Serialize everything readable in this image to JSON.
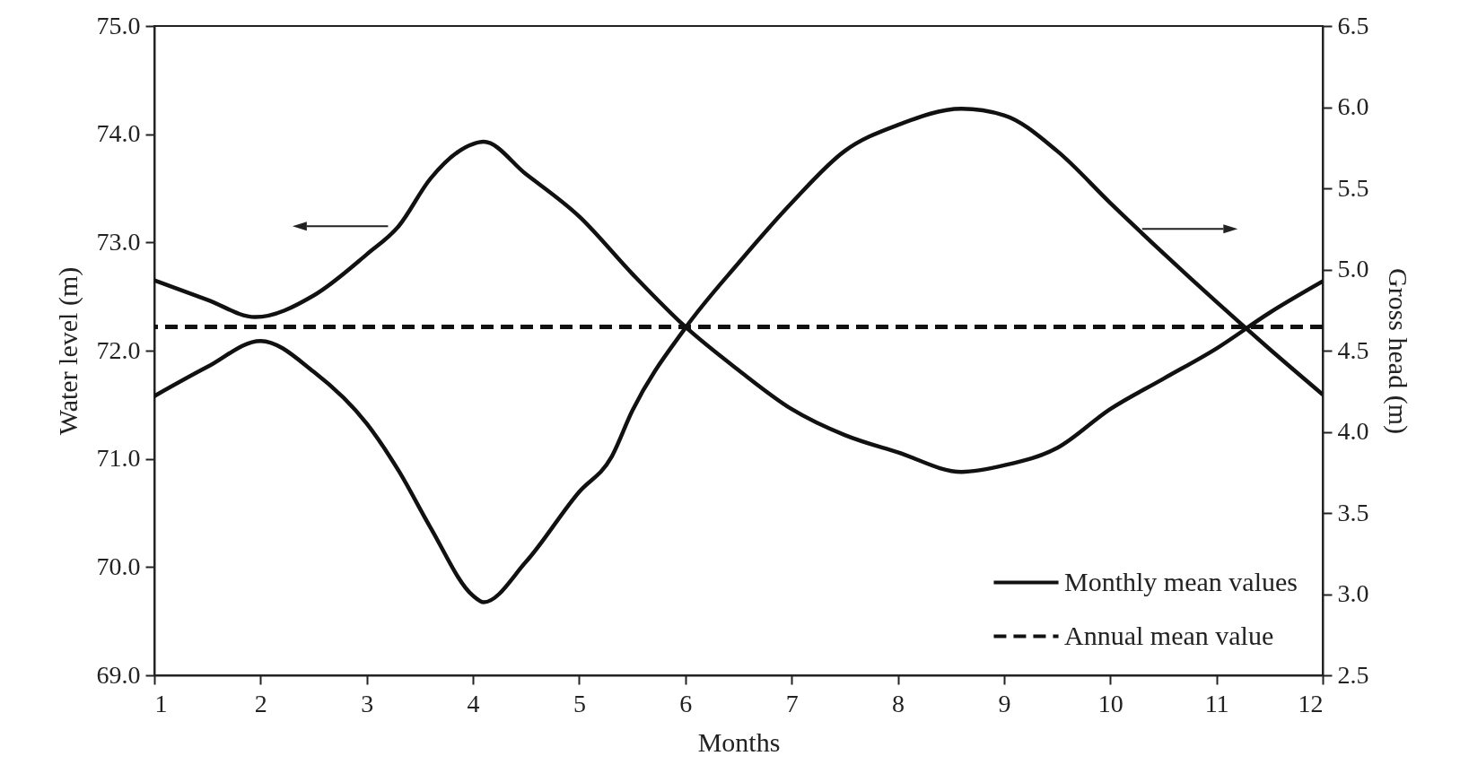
{
  "chart_data": {
    "type": "line",
    "xlabel": "Months",
    "ylabel": "Water level (m)",
    "y2label": "Gross head (m)",
    "xlim": [
      1,
      12
    ],
    "xticks": [
      1,
      2,
      3,
      4,
      5,
      6,
      7,
      8,
      9,
      10,
      11,
      12
    ],
    "ylim": [
      69,
      75
    ],
    "yticks": [
      {
        "value": 69,
        "label": "69.0"
      },
      {
        "value": 70,
        "label": "70.0"
      },
      {
        "value": 71,
        "label": "71.0"
      },
      {
        "value": 72,
        "label": "72.0"
      },
      {
        "value": 73,
        "label": "73.0"
      },
      {
        "value": 74,
        "label": "74.0"
      },
      {
        "value": 75,
        "label": "75.0"
      }
    ],
    "y2lim": [
      2.5,
      6.5
    ],
    "y2ticks": [
      2.5,
      {
        "value": 3,
        "label": "3.0"
      },
      3.5,
      {
        "value": 4,
        "label": "4.0"
      },
      4.5,
      {
        "value": 5,
        "label": "5.0"
      },
      5.5,
      {
        "value": 6,
        "label": "6.0"
      },
      6.5
    ],
    "series": [
      {
        "name": "Monthly mean values",
        "color": "#111111",
        "line_style": "solid",
        "x": [
          1,
          1.5,
          1.95,
          2.5,
          3,
          3.3,
          3.6,
          4,
          4.1,
          4.5,
          5,
          5.5,
          6,
          6.5,
          7,
          7.5,
          8,
          8.6,
          9,
          9.5,
          10,
          10.5,
          11,
          11.5,
          12
        ],
        "values": [
          72.65,
          72.47,
          72.31,
          72.51,
          72.89,
          73.15,
          73.59,
          73.91,
          73.93,
          73.63,
          73.24,
          72.71,
          72.22,
          71.82,
          71.46,
          71.22,
          71.06,
          70.88,
          70.94,
          71.1,
          71.46,
          71.74,
          72.02,
          72.35,
          72.64
        ]
      },
      {
        "color": "#111111",
        "line_style": "solid",
        "axis": "y2",
        "x": [
          1,
          1.5,
          2,
          2.5,
          3,
          3.3,
          3.6,
          4,
          4.1,
          4.5,
          5,
          5.3,
          5.5,
          6,
          6.5,
          7,
          7.5,
          8,
          8.6,
          9,
          9.5,
          10,
          10.5,
          11,
          11.5,
          12
        ],
        "values": [
          4.22,
          4.4,
          4.56,
          4.37,
          4.05,
          3.76,
          3.41,
          2.99,
          2.95,
          3.2,
          3.63,
          3.84,
          4.13,
          4.64,
          5.04,
          5.41,
          5.73,
          5.89,
          5.99,
          5.95,
          5.73,
          5.41,
          5.1,
          4.8,
          4.51,
          4.23
        ]
      }
    ],
    "ref_lines": [
      {
        "axis": "y",
        "value": 72.22,
        "label": "Annual mean value",
        "color": "#111111",
        "line_style": "dashed"
      }
    ],
    "legend": "bottom right",
    "grid": false
  }
}
